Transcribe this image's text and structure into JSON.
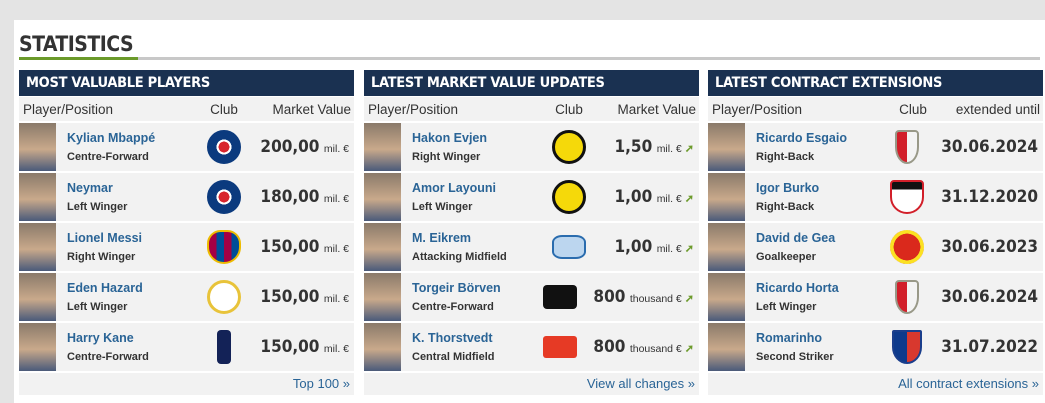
{
  "title": "STATISTICS",
  "accent_color": "#6b9a2a",
  "header_color": "#1a3151",
  "panels": [
    {
      "title": "MOST VALUABLE PLAYERS",
      "cols": [
        "Player/Position",
        "Club",
        "Market Value"
      ],
      "footer": "Top 100 »",
      "rows": [
        {
          "name": "Kylian Mbappé",
          "pos": "Centre-Forward",
          "club": "psg-logo",
          "value": "200,00",
          "unit": "mil. €"
        },
        {
          "name": "Neymar",
          "pos": "Left Winger",
          "club": "psg-logo",
          "value": "180,00",
          "unit": "mil. €"
        },
        {
          "name": "Lionel Messi",
          "pos": "Right Winger",
          "club": "barcelona-logo",
          "value": "150,00",
          "unit": "mil. €"
        },
        {
          "name": "Eden Hazard",
          "pos": "Left Winger",
          "club": "real-madrid-logo",
          "value": "150,00",
          "unit": "mil. €"
        },
        {
          "name": "Harry Kane",
          "pos": "Centre-Forward",
          "club": "tottenham-logo",
          "value": "150,00",
          "unit": "mil. €"
        }
      ]
    },
    {
      "title": "LATEST MARKET VALUE UPDATES",
      "cols": [
        "Player/Position",
        "Club",
        "Market Value"
      ],
      "footer": "View all changes »",
      "rows": [
        {
          "name": "Hakon Evjen",
          "pos": "Right Winger",
          "club": "bodo-glimt-logo",
          "value": "1,50",
          "unit": "mil. €",
          "trend": "up-arrow-icon"
        },
        {
          "name": "Amor Layouni",
          "pos": "Left Winger",
          "club": "bodo-glimt-logo",
          "value": "1,00",
          "unit": "mil. €",
          "trend": "up-arrow-icon"
        },
        {
          "name": "M. Eikrem",
          "pos": "Attacking Midfield",
          "club": "molde-logo",
          "value": "1,00",
          "unit": "mil. €",
          "trend": "up-arrow-icon"
        },
        {
          "name": "Torgeir Börven",
          "pos": "Centre-Forward",
          "club": "odd-logo",
          "value": "800",
          "unit": "thousand €",
          "trend": "up-arrow-icon"
        },
        {
          "name": "K. Thorstvedt",
          "pos": "Central Midfield",
          "club": "viking-logo",
          "value": "800",
          "unit": "thousand €",
          "trend": "up-arrow-icon"
        }
      ]
    },
    {
      "title": "LATEST CONTRACT EXTENSIONS",
      "cols": [
        "Player/Position",
        "Club",
        "extended until"
      ],
      "footer": "All contract extensions »",
      "rows": [
        {
          "name": "Ricardo Esgaio",
          "pos": "Right-Back",
          "club": "braga-logo",
          "value": "30.06.2024"
        },
        {
          "name": "Igor Burko",
          "pos": "Right-Back",
          "club": "shakhtar-logo",
          "value": "31.12.2020"
        },
        {
          "name": "David de Gea",
          "pos": "Goalkeeper",
          "club": "man-united-logo",
          "value": "30.06.2023"
        },
        {
          "name": "Ricardo Horta",
          "pos": "Left Winger",
          "club": "braga-logo",
          "value": "30.06.2024"
        },
        {
          "name": "Romarinho",
          "pos": "Second Striker",
          "club": "fortaleza-logo",
          "value": "31.07.2022"
        }
      ]
    }
  ]
}
